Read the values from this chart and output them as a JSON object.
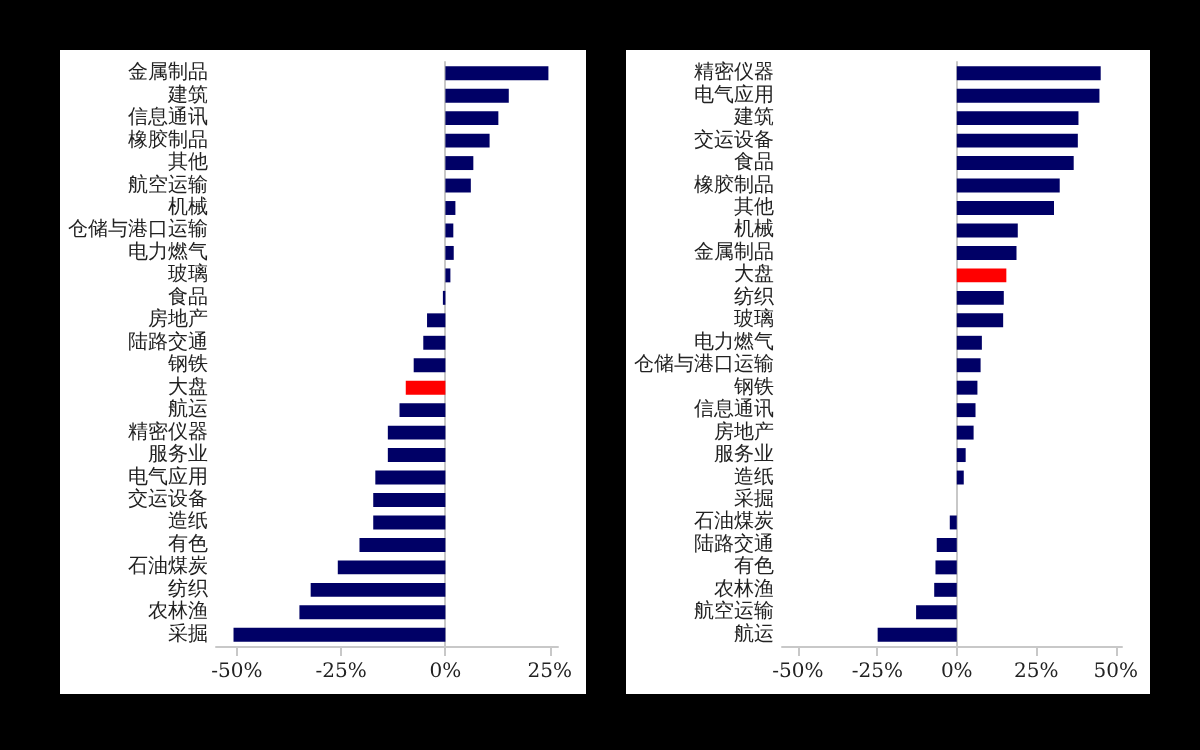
{
  "chart_data": [
    {
      "type": "bar",
      "orientation": "horizontal",
      "categories": [
        "金属制品",
        "建筑",
        "信息通讯",
        "橡胶制品",
        "其他",
        "航空运输",
        "机械",
        "仓储与港口运输",
        "电力燃气",
        "玻璃",
        "食品",
        "房地产",
        "陆路交通",
        "钢铁",
        "大盘",
        "航运",
        "精密仪器",
        "服务业",
        "电气应用",
        "交运设备",
        "造纸",
        "有色",
        "石油煤炭",
        "纺织",
        "农林渔",
        "采掘"
      ],
      "values": [
        24.7,
        15.2,
        12.7,
        10.6,
        6.7,
        6.1,
        2.4,
        1.9,
        2.0,
        1.2,
        -0.6,
        -4.4,
        -5.3,
        -7.6,
        -9.5,
        -11,
        -13.8,
        -13.8,
        -16.8,
        -17.3,
        -17.3,
        -20.6,
        -25.8,
        -32.3,
        -35,
        -50.8
      ],
      "colors": [
        "#000066",
        "#000066",
        "#000066",
        "#000066",
        "#000066",
        "#000066",
        "#000066",
        "#000066",
        "#000066",
        "#000066",
        "#000066",
        "#000066",
        "#000066",
        "#000066",
        "#ff0000",
        "#000066",
        "#000066",
        "#000066",
        "#000066",
        "#000066",
        "#000066",
        "#000066",
        "#000066",
        "#000066",
        "#000066",
        "#000066"
      ],
      "xlim": [
        -55,
        27
      ],
      "xticks": [
        {
          "value": -50,
          "label": "-50%"
        },
        {
          "value": -25,
          "label": "-25%"
        },
        {
          "value": 0,
          "label": "0%"
        },
        {
          "value": 25,
          "label": "25%"
        }
      ]
    },
    {
      "type": "bar",
      "orientation": "horizontal",
      "categories": [
        "精密仪器",
        "电气应用",
        "建筑",
        "交运设备",
        "食品",
        "橡胶制品",
        "其他",
        "机械",
        "金属制品",
        "大盘",
        "纺织",
        "玻璃",
        "电力燃气",
        "仓储与港口运输",
        "钢铁",
        "信息通讯",
        "房地产",
        "服务业",
        "造纸",
        "采掘",
        "石油煤炭",
        "陆路交通",
        "有色",
        "农林渔",
        "航空运输",
        "航运"
      ],
      "values": [
        45.3,
        44.9,
        38.3,
        38.1,
        36.8,
        32.4,
        30.6,
        19.2,
        18.8,
        15.6,
        14.8,
        14.6,
        7.9,
        7.5,
        6.5,
        5.9,
        5.3,
        2.8,
        2.2,
        0,
        -2.2,
        -6.3,
        -6.7,
        -7.1,
        -12.8,
        -24.9
      ],
      "colors": [
        "#000066",
        "#000066",
        "#000066",
        "#000066",
        "#000066",
        "#000066",
        "#000066",
        "#000066",
        "#000066",
        "#ff0000",
        "#000066",
        "#000066",
        "#000066",
        "#000066",
        "#000066",
        "#000066",
        "#000066",
        "#000066",
        "#000066",
        "#000066",
        "#000066",
        "#000066",
        "#000066",
        "#000066",
        "#000066",
        "#000066"
      ],
      "xlim": [
        -55,
        52
      ],
      "xticks": [
        {
          "value": -50,
          "label": "-50%"
        },
        {
          "value": -25,
          "label": "-25%"
        },
        {
          "value": 0,
          "label": "0%"
        },
        {
          "value": 25,
          "label": "25%"
        },
        {
          "value": 50,
          "label": "50%"
        }
      ]
    }
  ]
}
